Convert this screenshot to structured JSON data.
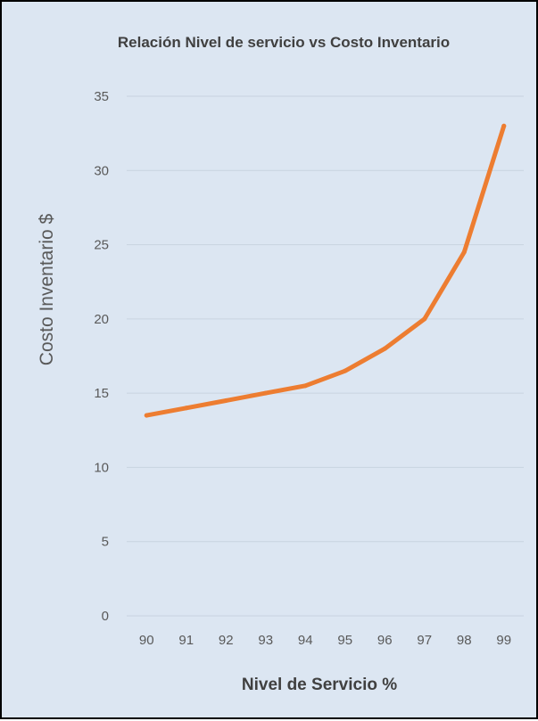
{
  "chart_data": {
    "type": "line",
    "title": "Relación Nivel de servicio vs Costo Inventario",
    "xlabel": "Nivel de Servicio %",
    "ylabel": "Costo Inventario $",
    "x": [
      "90",
      "91",
      "92",
      "93",
      "94",
      "95",
      "96",
      "97",
      "98",
      "99"
    ],
    "y_ticks": [
      "0",
      "5",
      "10",
      "15",
      "20",
      "25",
      "30",
      "35"
    ],
    "ylim": [
      0,
      35
    ],
    "grid": true,
    "legend": "none",
    "series": [
      {
        "values": [
          13.5,
          14.0,
          14.5,
          15.0,
          15.5,
          16.5,
          18.0,
          20.0,
          24.5,
          33.0
        ]
      }
    ]
  },
  "colors": {
    "background": "#dce6f2",
    "line": "#ed7d31",
    "grid": "#c8d3e0",
    "text": "#595959"
  }
}
